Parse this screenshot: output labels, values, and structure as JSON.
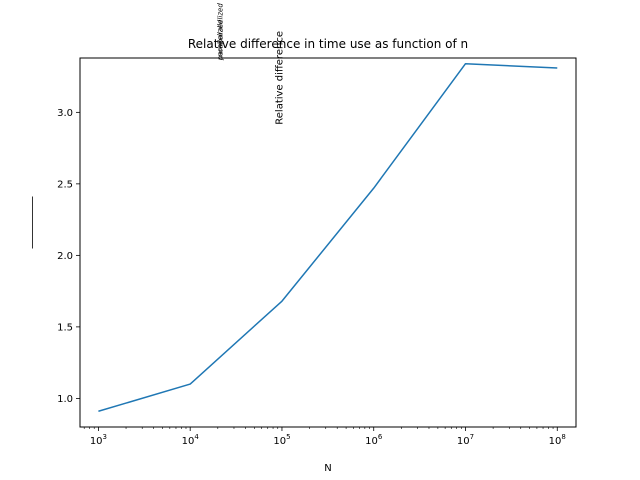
{
  "chart_data": {
    "type": "line",
    "title": "Relative difference in time use as function of n",
    "xlabel": "N",
    "ylabel": "Relative difference",
    "ylabel_fraction": {
      "numerator": "nonparallelized",
      "denominator": "parallelized"
    },
    "x_scale": "log",
    "xlim": [
      630,
      160000000
    ],
    "ylim": [
      0.8,
      3.38
    ],
    "x_ticks": [
      1000,
      10000,
      100000,
      1000000,
      10000000,
      100000000
    ],
    "x_tick_labels": [
      {
        "base": "10",
        "exp": "3"
      },
      {
        "base": "10",
        "exp": "4"
      },
      {
        "base": "10",
        "exp": "5"
      },
      {
        "base": "10",
        "exp": "6"
      },
      {
        "base": "10",
        "exp": "7"
      },
      {
        "base": "10",
        "exp": "8"
      }
    ],
    "y_ticks": [
      1.0,
      1.5,
      2.0,
      2.5,
      3.0
    ],
    "y_tick_labels": [
      "1.0",
      "1.5",
      "2.0",
      "2.5",
      "3.0"
    ],
    "grid": false,
    "legend": "none",
    "series": [
      {
        "x": [
          1000,
          10000,
          100000,
          1000000,
          10000000,
          100000000
        ],
        "y": [
          0.91,
          1.1,
          1.68,
          2.47,
          3.34,
          3.31
        ],
        "color": "#1f77b4"
      }
    ]
  }
}
